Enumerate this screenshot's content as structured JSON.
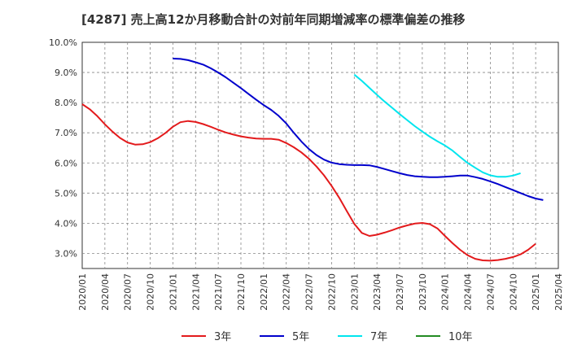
{
  "chart_data": {
    "type": "line",
    "title": "[4287]  売上高12か月移動合計の対前年同期増減率の標準偏差の推移",
    "xlabel": "",
    "ylabel": "",
    "ylim": [
      2.5,
      10.0
    ],
    "yticks": [
      3.0,
      4.0,
      5.0,
      6.0,
      7.0,
      8.0,
      9.0,
      10.0
    ],
    "ytick_labels": [
      "3.0%",
      "4.0%",
      "5.0%",
      "6.0%",
      "7.0%",
      "8.0%",
      "9.0%",
      "10.0%"
    ],
    "xticks": [
      "2020/01",
      "2020/04",
      "2020/07",
      "2020/10",
      "2021/01",
      "2021/04",
      "2021/07",
      "2021/10",
      "2022/01",
      "2022/04",
      "2022/07",
      "2022/10",
      "2023/01",
      "2023/04",
      "2023/07",
      "2023/10",
      "2024/01",
      "2024/04",
      "2024/07",
      "2024/10",
      "2025/01",
      "2025/04"
    ],
    "grid": true,
    "legend_position": "bottom",
    "series": [
      {
        "name": "3年",
        "color": "#e31a1c",
        "start": "2020/01",
        "values": [
          7.95,
          7.78,
          7.55,
          7.28,
          7.04,
          6.83,
          6.68,
          6.61,
          6.62,
          6.69,
          6.82,
          6.99,
          7.2,
          7.35,
          7.39,
          7.36,
          7.29,
          7.2,
          7.1,
          7.01,
          6.94,
          6.88,
          6.84,
          6.81,
          6.8,
          6.8,
          6.77,
          6.66,
          6.52,
          6.35,
          6.14,
          5.88,
          5.59,
          5.24,
          4.85,
          4.41,
          3.98,
          3.68,
          3.58,
          3.62,
          3.69,
          3.77,
          3.86,
          3.93,
          3.99,
          4.01,
          3.97,
          3.83,
          3.58,
          3.34,
          3.12,
          2.94,
          2.82,
          2.77,
          2.76,
          2.78,
          2.82,
          2.88,
          2.97,
          3.12,
          3.32
        ]
      },
      {
        "name": "5年",
        "color": "#0000cc",
        "start": "2021/01",
        "values": [
          9.46,
          9.45,
          9.41,
          9.34,
          9.26,
          9.14,
          9.0,
          8.84,
          8.66,
          8.48,
          8.29,
          8.1,
          7.92,
          7.76,
          7.56,
          7.31,
          7.0,
          6.71,
          6.46,
          6.26,
          6.11,
          6.01,
          5.96,
          5.94,
          5.93,
          5.93,
          5.92,
          5.87,
          5.8,
          5.73,
          5.66,
          5.6,
          5.56,
          5.54,
          5.53,
          5.53,
          5.54,
          5.56,
          5.58,
          5.58,
          5.53,
          5.47,
          5.39,
          5.3,
          5.2,
          5.1,
          5.0,
          4.9,
          4.82,
          4.77
        ]
      },
      {
        "name": "7年",
        "color": "#00e5ee",
        "start": "2023/01",
        "values": [
          8.93,
          8.72,
          8.49,
          8.26,
          8.04,
          7.83,
          7.62,
          7.42,
          7.22,
          7.04,
          6.87,
          6.72,
          6.58,
          6.41,
          6.2,
          6.0,
          5.84,
          5.69,
          5.59,
          5.54,
          5.54,
          5.58,
          5.66
        ]
      },
      {
        "name": "10年",
        "color": "#228b22",
        "start": "2025/01",
        "values": []
      }
    ]
  }
}
